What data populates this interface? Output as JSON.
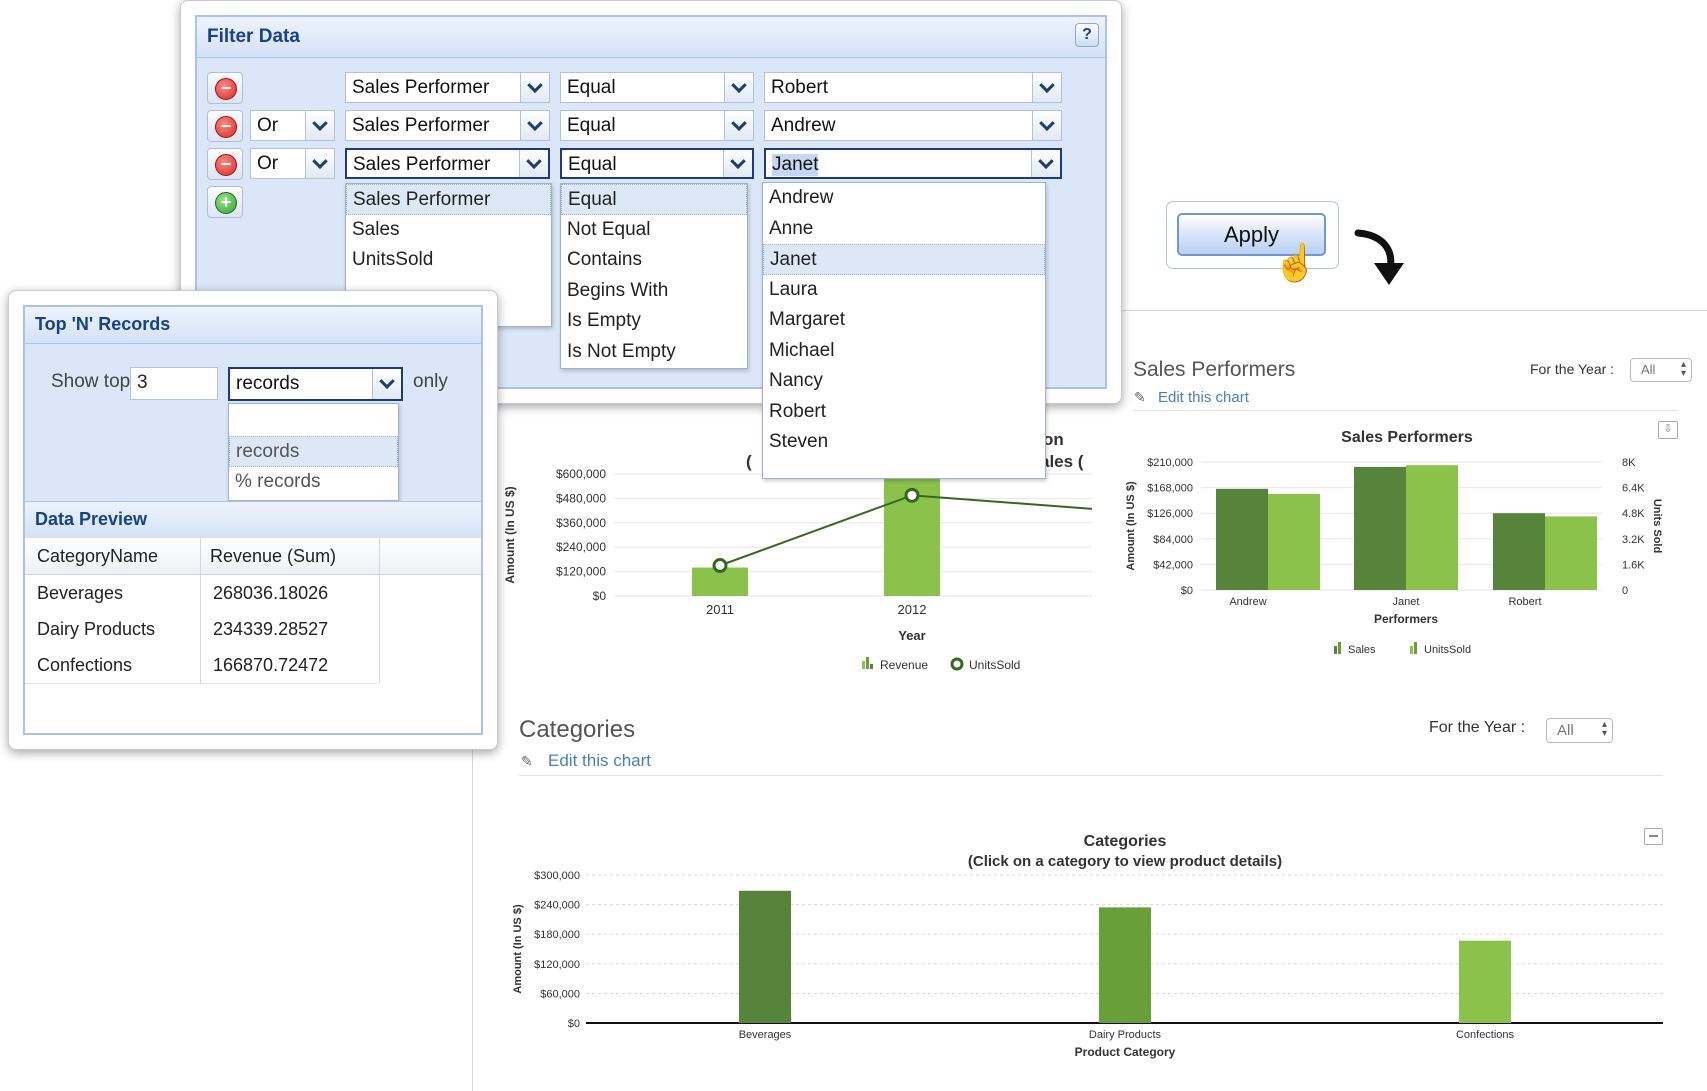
{
  "filter_data": {
    "title": "Filter Data",
    "help": "?",
    "rows": [
      {
        "connector": "",
        "field": "Sales Performer",
        "operator": "Equal",
        "value": "Robert"
      },
      {
        "connector": "Or",
        "field": "Sales Performer",
        "operator": "Equal",
        "value": "Andrew"
      },
      {
        "connector": "Or",
        "field": "Sales Performer",
        "operator": "Equal",
        "value": "Janet"
      }
    ],
    "field_options": [
      "Sales Performer",
      "Sales",
      "UnitsSold"
    ],
    "operator_options": [
      "Equal",
      "Not Equal",
      "Contains",
      "Begins With",
      "Is Empty",
      "Is Not Empty"
    ],
    "value_options": [
      "Andrew",
      "Anne",
      "Janet",
      "Laura",
      "Margaret",
      "Michael",
      "Nancy",
      "Robert",
      "Steven"
    ]
  },
  "apply": {
    "label": "Apply"
  },
  "top_n": {
    "title": "Top 'N' Records",
    "show_top_label": "Show top",
    "count": "3",
    "unit": "records",
    "only_label": "only",
    "unit_options": [
      "",
      "records",
      "% records"
    ]
  },
  "data_preview": {
    "title": "Data Preview",
    "columns": [
      "CategoryName",
      "Revenue (Sum)"
    ],
    "rows": [
      [
        "Beverages",
        "268036.18026"
      ],
      [
        "Dairy Products",
        "234339.28527"
      ],
      [
        "Confections",
        "166870.72472"
      ]
    ]
  },
  "sales_panel": {
    "title": "Sales Performers",
    "edit_label": "Edit this chart",
    "year_label": "For the Year :",
    "year_value": "All"
  },
  "categories_panel": {
    "title": "Categories",
    "edit_label": "Edit this chart",
    "year_label": "For the Year :",
    "year_value": "All"
  },
  "partial_chart_labels": {
    "title_frag1": "on",
    "title_frag2": "ales (",
    "title_frag3": "("
  },
  "colors": {
    "dark_green": "#56843a",
    "mid_green": "#689f38",
    "light_green": "#8bc34a",
    "header_blue": "#15428b"
  },
  "chart_data": [
    {
      "type": "bar",
      "title": "",
      "categories": [
        "2011",
        "2012"
      ],
      "xlabel": "Year",
      "ylabel": "Amount (In US $)",
      "ylim": [
        0,
        600000
      ],
      "yticks": [
        "$0",
        "$120,000",
        "$240,000",
        "$360,000",
        "$480,000",
        "$600,000"
      ],
      "series": [
        {
          "name": "Revenue",
          "type": "bar",
          "values": [
            140000,
            590000
          ]
        },
        {
          "name": "UnitsSold",
          "type": "line",
          "values": [
            150000,
            495000
          ]
        }
      ]
    },
    {
      "type": "bar",
      "title": "Sales Performers",
      "categories": [
        "Andrew",
        "Janet",
        "Robert"
      ],
      "xlabel": "Performers",
      "ylabel": "Amount (In US $)",
      "y2label": "Units Sold",
      "ylim": [
        0,
        210000
      ],
      "y2lim": [
        0,
        8000
      ],
      "yticks": [
        "$0",
        "$42,000",
        "$84,000",
        "$126,000",
        "$168,000",
        "$210,000"
      ],
      "y2ticks": [
        "0",
        "1.6K",
        "3.2K",
        "4.8K",
        "6.4K",
        "8K"
      ],
      "series": [
        {
          "name": "Sales",
          "values": [
            166000,
            202000,
            126000
          ],
          "axis": "left"
        },
        {
          "name": "UnitsSold",
          "values": [
            6000,
            7800,
            4600
          ],
          "axis": "right"
        }
      ],
      "legend": "bottom"
    },
    {
      "type": "bar",
      "title": "Categories",
      "subtitle": "(Click on a category to view product details)",
      "categories": [
        "Beverages",
        "Dairy Products",
        "Confections"
      ],
      "values": [
        268036.18026,
        234339.28527,
        166870.72472
      ],
      "xlabel": "Product Category",
      "ylabel": "Amount (In US $)",
      "ylim": [
        0,
        300000
      ],
      "yticks": [
        "$0",
        "$60,000",
        "$120,000",
        "$180,000",
        "$240,000",
        "$300,000"
      ],
      "bar_colors": [
        "#56843a",
        "#689f38",
        "#8bc34a"
      ]
    }
  ]
}
